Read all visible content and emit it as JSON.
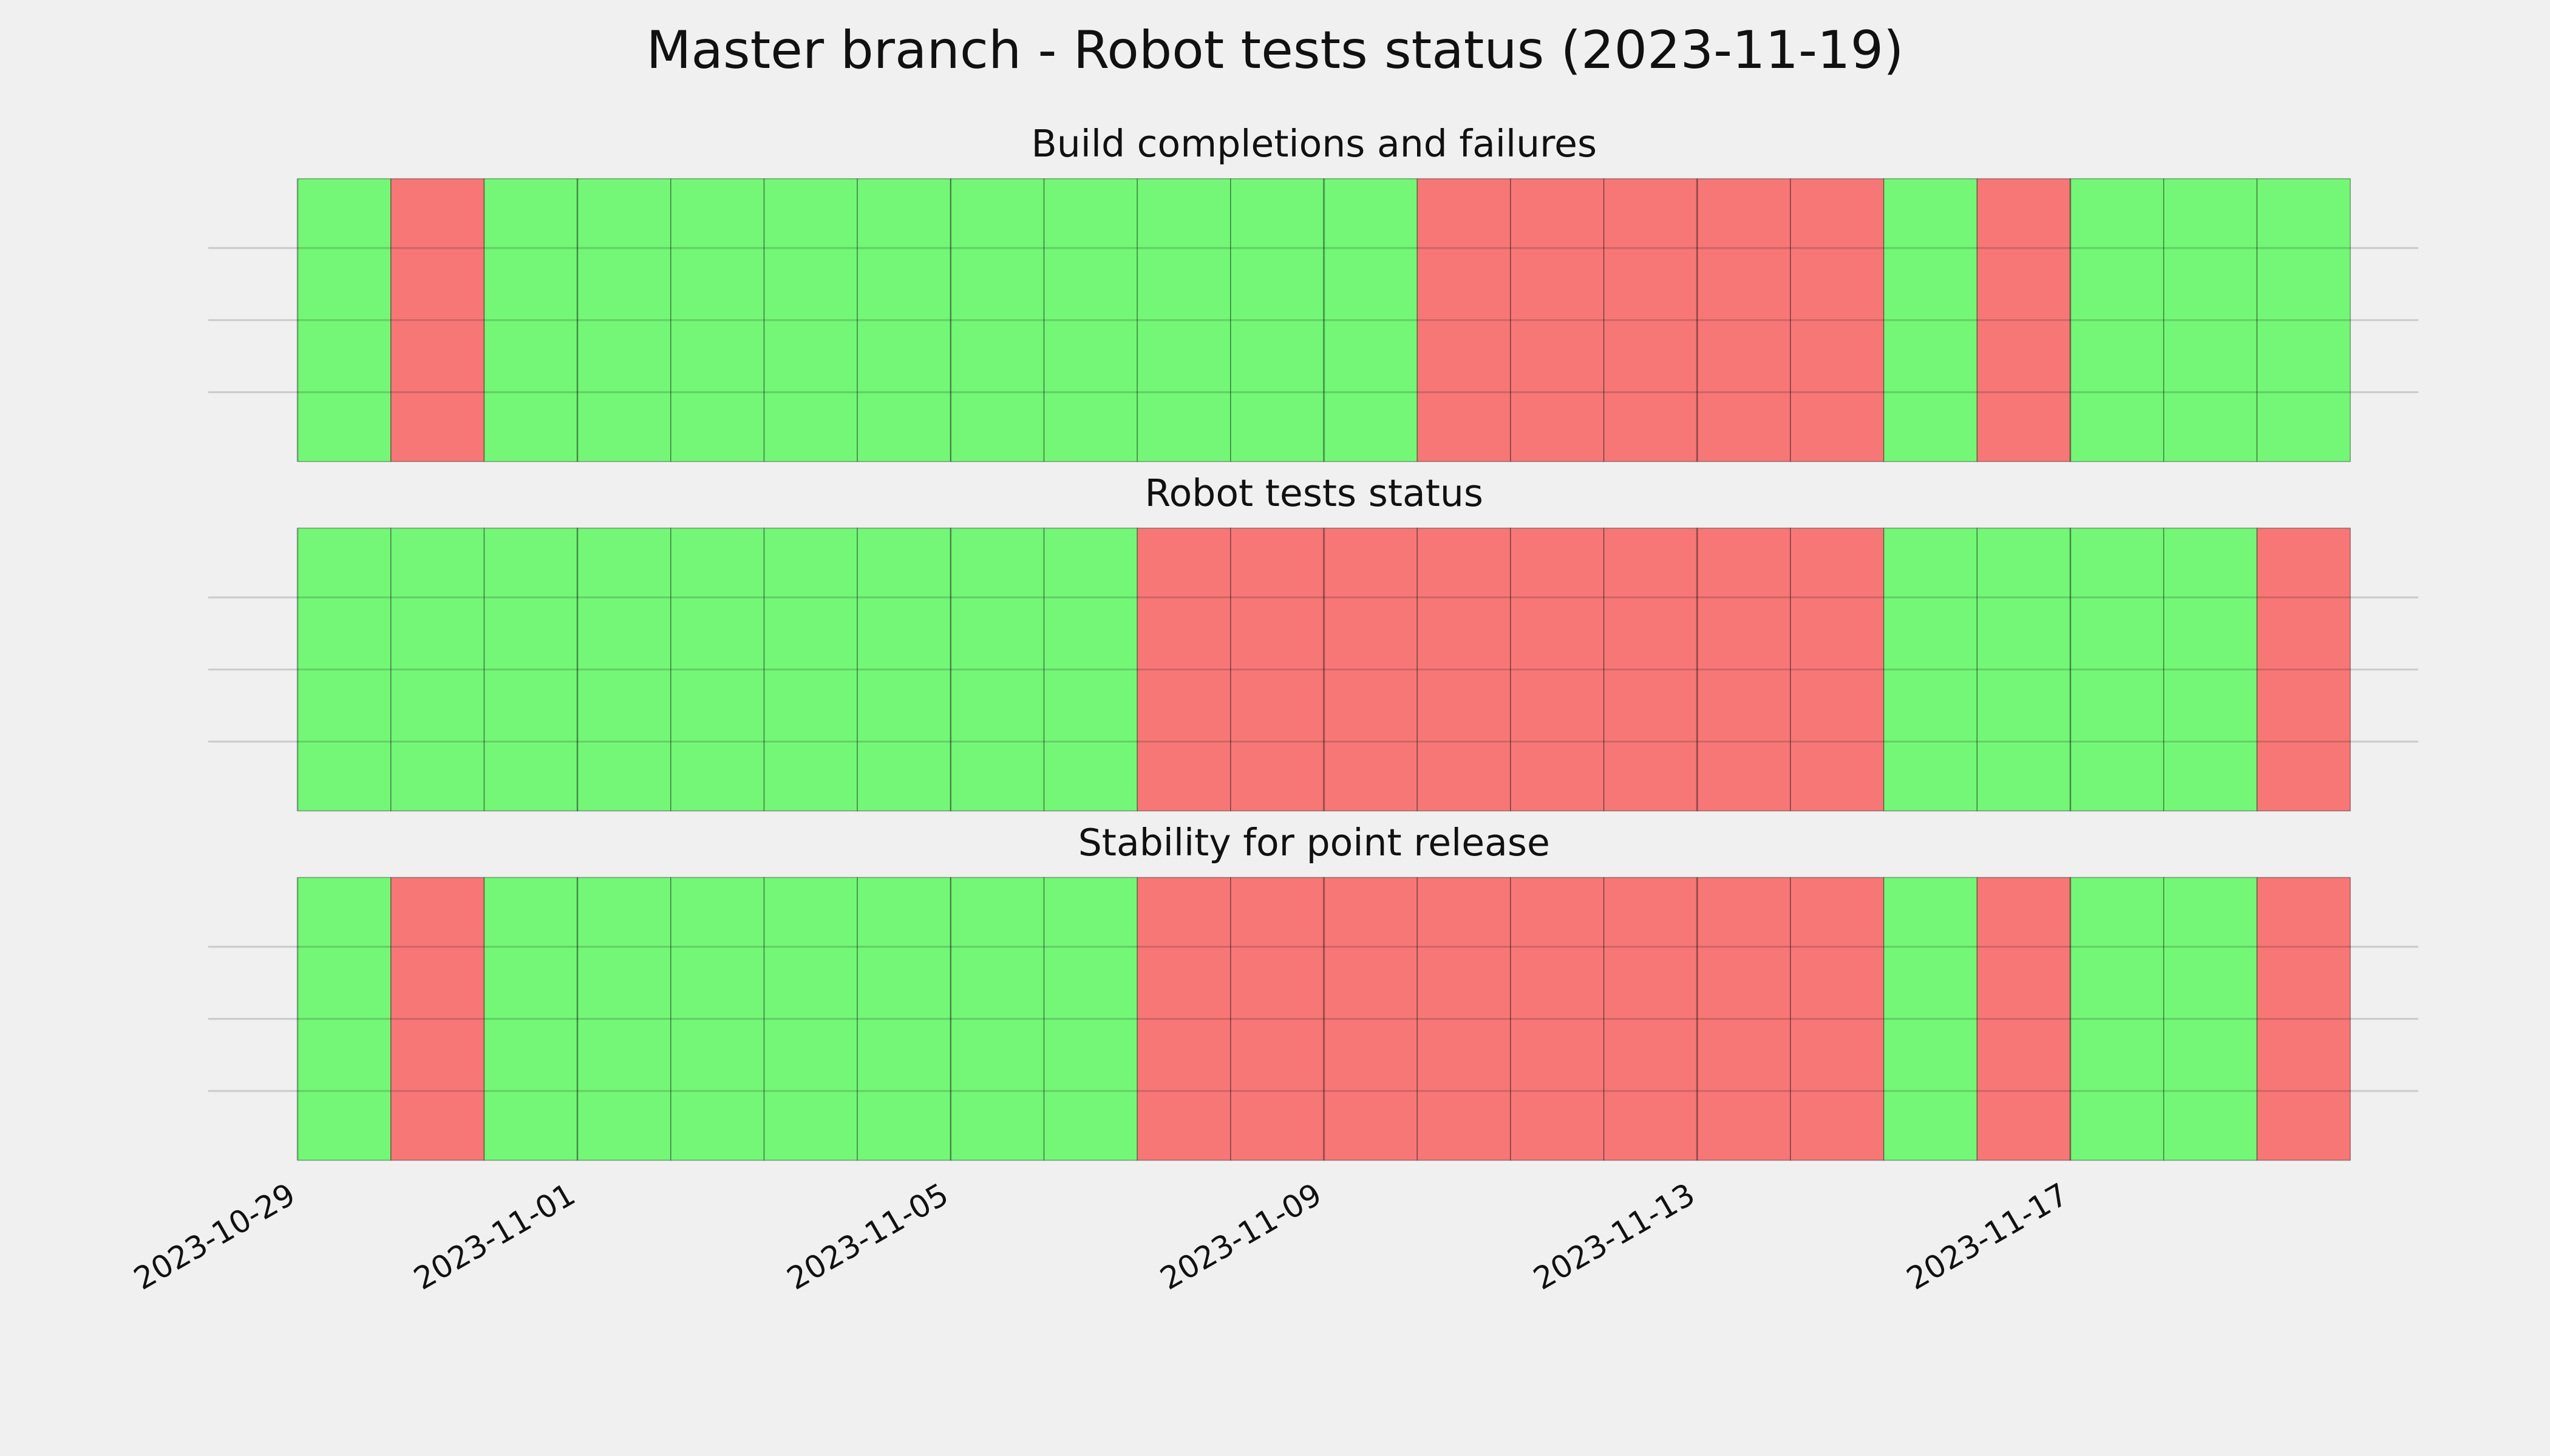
{
  "title": "Master branch - Robot tests status (2023-11-19)",
  "chart_data": [
    {
      "type": "timeline",
      "title": "Build completions and failures",
      "x": [
        "2023-10-29",
        "2023-10-30",
        "2023-10-31",
        "2023-11-01",
        "2023-11-02",
        "2023-11-03",
        "2023-11-04",
        "2023-11-05",
        "2023-11-06",
        "2023-11-07",
        "2023-11-08",
        "2023-11-09",
        "2023-11-10",
        "2023-11-11",
        "2023-11-12",
        "2023-11-13",
        "2023-11-14",
        "2023-11-15",
        "2023-11-16",
        "2023-11-17",
        "2023-11-18",
        "2023-11-19"
      ],
      "values": [
        1,
        0,
        1,
        1,
        1,
        1,
        1,
        1,
        1,
        1,
        1,
        1,
        0,
        0,
        0,
        0,
        0,
        1,
        0,
        1,
        1,
        1
      ],
      "color_by_value": [
        "#f77777",
        "#74f777"
      ],
      "xlim": [
        "2023-10-28",
        "2023-11-21"
      ],
      "xticks": [
        "2023-10-29",
        "2023-11-01",
        "2023-11-05",
        "2023-11-09",
        "2023-11-13",
        "2023-11-17"
      ],
      "grid": true
    },
    {
      "type": "timeline",
      "title": "Robot tests status",
      "x": [
        "2023-10-29",
        "2023-10-30",
        "2023-10-31",
        "2023-11-01",
        "2023-11-02",
        "2023-11-03",
        "2023-11-04",
        "2023-11-05",
        "2023-11-06",
        "2023-11-07",
        "2023-11-08",
        "2023-11-09",
        "2023-11-10",
        "2023-11-11",
        "2023-11-12",
        "2023-11-13",
        "2023-11-14",
        "2023-11-15",
        "2023-11-16",
        "2023-11-17",
        "2023-11-18",
        "2023-11-19"
      ],
      "values": [
        1,
        1,
        1,
        1,
        1,
        1,
        1,
        1,
        1,
        0,
        0,
        0,
        0,
        0,
        0,
        0,
        0,
        1,
        1,
        1,
        1,
        0
      ],
      "color_by_value": [
        "#f77777",
        "#74f777"
      ],
      "xlim": [
        "2023-10-28",
        "2023-11-21"
      ],
      "xticks": [
        "2023-10-29",
        "2023-11-01",
        "2023-11-05",
        "2023-11-09",
        "2023-11-13",
        "2023-11-17"
      ],
      "grid": true
    },
    {
      "type": "timeline",
      "title": "Stability for point release",
      "x": [
        "2023-10-29",
        "2023-10-30",
        "2023-10-31",
        "2023-11-01",
        "2023-11-02",
        "2023-11-03",
        "2023-11-04",
        "2023-11-05",
        "2023-11-06",
        "2023-11-07",
        "2023-11-08",
        "2023-11-09",
        "2023-11-10",
        "2023-11-11",
        "2023-11-12",
        "2023-11-13",
        "2023-11-14",
        "2023-11-15",
        "2023-11-16",
        "2023-11-17",
        "2023-11-18",
        "2023-11-19"
      ],
      "values": [
        1,
        0,
        1,
        1,
        1,
        1,
        1,
        1,
        1,
        0,
        0,
        0,
        0,
        0,
        0,
        0,
        0,
        1,
        0,
        1,
        1,
        0
      ],
      "color_by_value": [
        "#f77777",
        "#74f777"
      ],
      "xlim": [
        "2023-10-28",
        "2023-11-21"
      ],
      "xticks": [
        "2023-10-29",
        "2023-11-01",
        "2023-11-05",
        "2023-11-09",
        "2023-11-13",
        "2023-11-17"
      ],
      "grid": true
    }
  ]
}
